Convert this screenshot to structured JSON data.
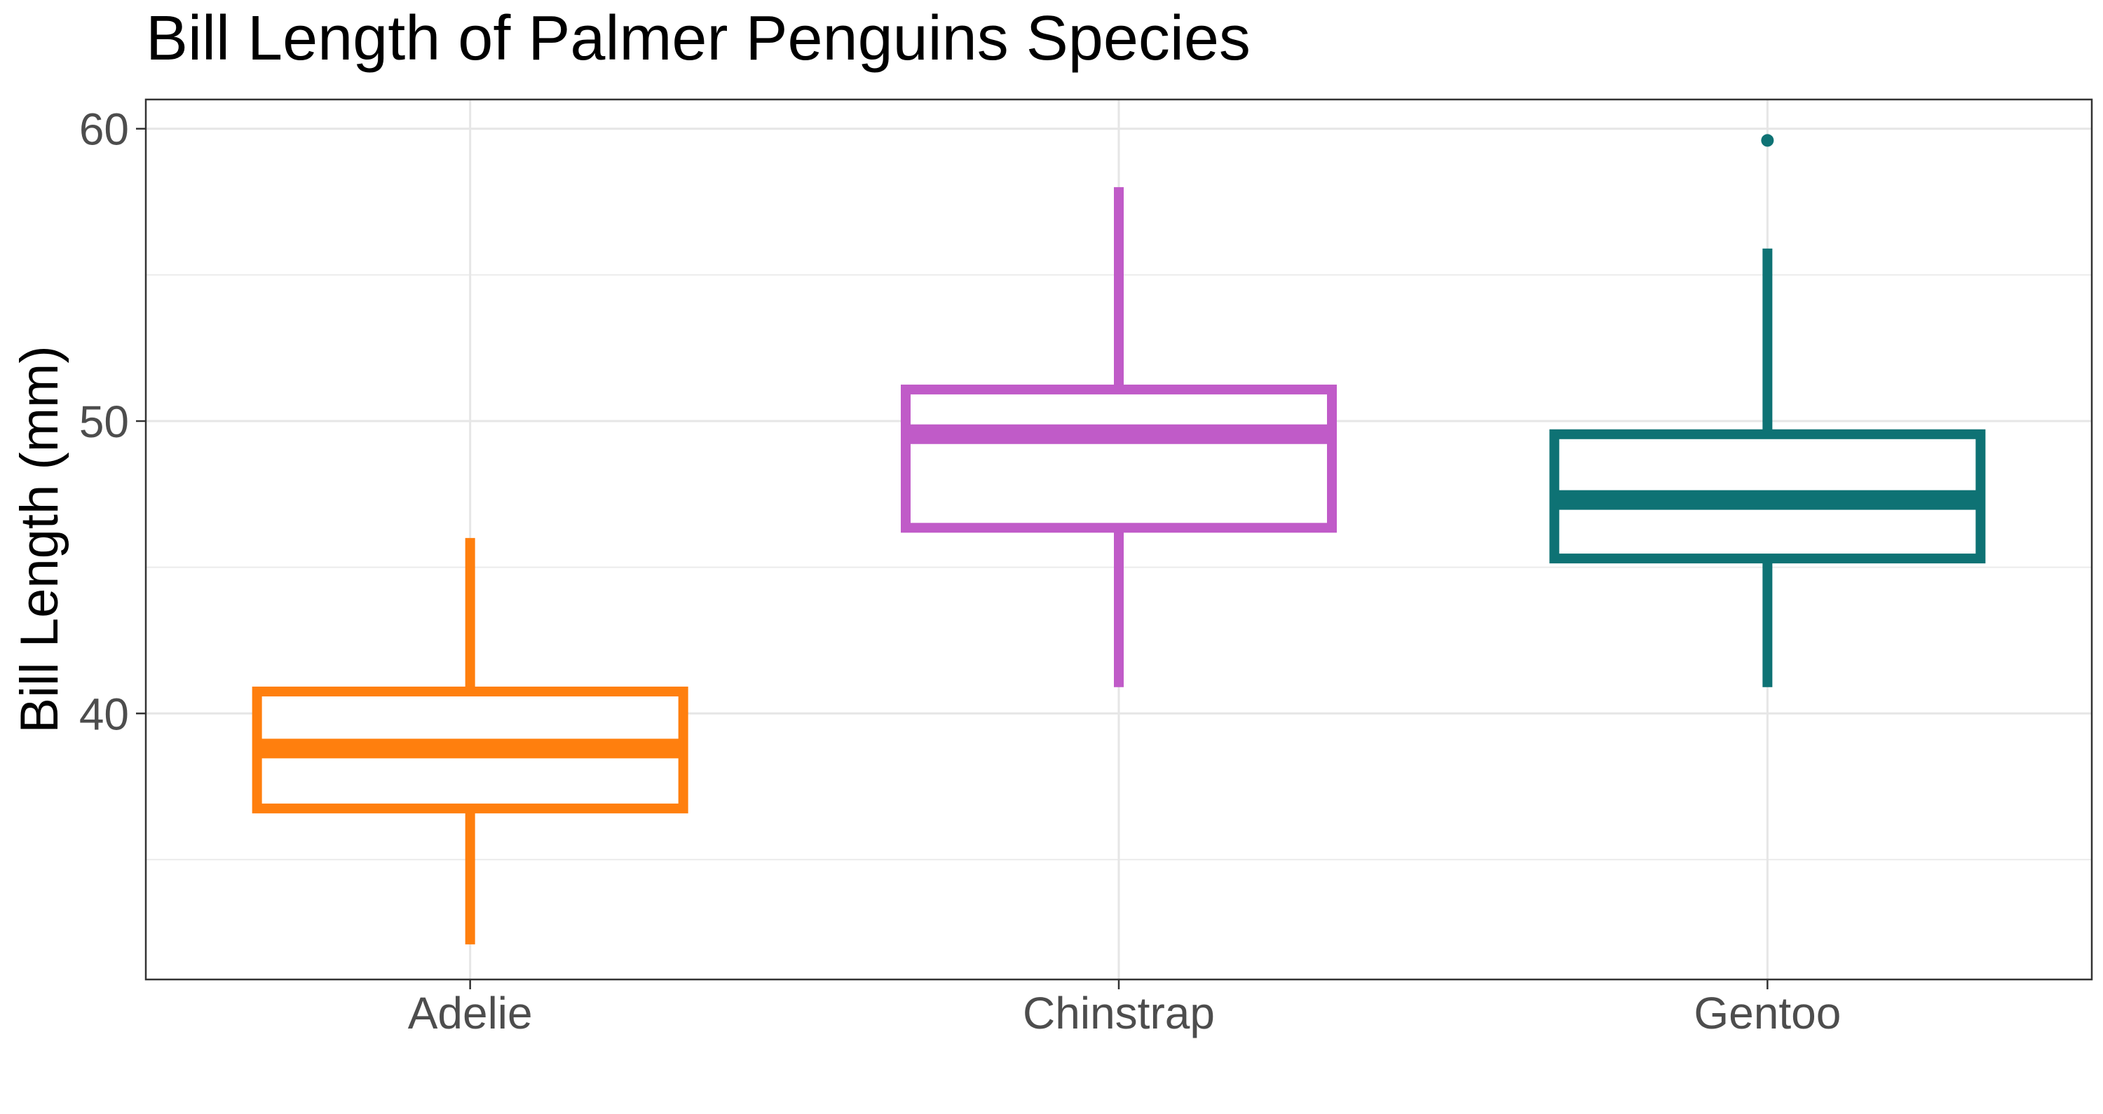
{
  "chart_data": {
    "type": "boxplot",
    "title": "Bill Length of Palmer Penguins Species",
    "xlabel": "",
    "ylabel": "Bill Length (mm)",
    "ylim": [
      30.9,
      61.0
    ],
    "y_ticks": [
      40,
      50,
      60
    ],
    "y_minor_ticks": [
      35,
      45,
      55
    ],
    "grid": true,
    "legend": "none",
    "categories": [
      "Adelie",
      "Chinstrap",
      "Gentoo"
    ],
    "boxes": [
      {
        "category": "Adelie",
        "color": "#FF7F0E",
        "whisker_low": 32.1,
        "q1": 36.75,
        "median": 38.8,
        "q3": 40.75,
        "whisker_high": 46.0,
        "outliers": []
      },
      {
        "category": "Chinstrap",
        "color": "#C05BC8",
        "whisker_low": 40.9,
        "q1": 46.35,
        "median": 49.55,
        "q3": 51.08,
        "whisker_high": 58.0,
        "outliers": []
      },
      {
        "category": "Gentoo",
        "color": "#0E7274",
        "whisker_low": 40.9,
        "q1": 45.3,
        "median": 47.3,
        "q3": 49.55,
        "whisker_high": 55.9,
        "outliers": [
          59.6
        ]
      }
    ]
  }
}
